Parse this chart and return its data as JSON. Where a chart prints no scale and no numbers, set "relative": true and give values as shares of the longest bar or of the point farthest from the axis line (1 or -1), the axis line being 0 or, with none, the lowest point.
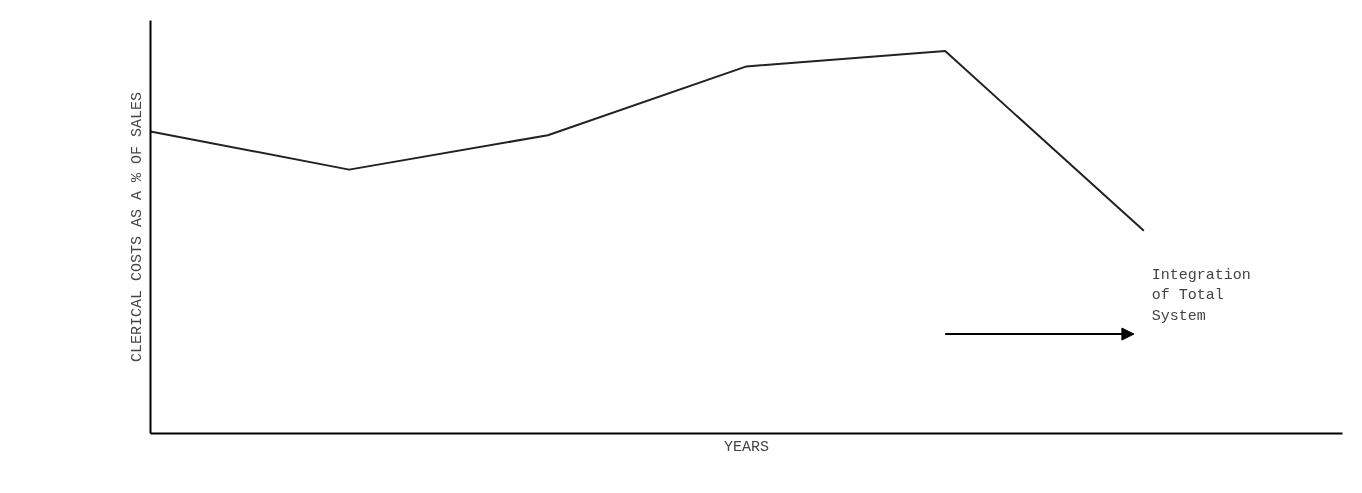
{
  "chart_data": {
    "type": "line",
    "relative": true,
    "xlabel": "YEARS",
    "ylabel": "CLERICAL COSTS AS A % OF SALES",
    "categories": [
      null,
      null,
      null,
      null,
      null,
      null
    ],
    "series": [
      {
        "color": "#222222",
        "values": [
          0.79,
          0.69,
          0.78,
          0.96,
          1.0,
          0.53
        ]
      }
    ],
    "annotations": [
      "Integration of Total System"
    ],
    "marker": "none",
    "line_style": "solid"
  }
}
